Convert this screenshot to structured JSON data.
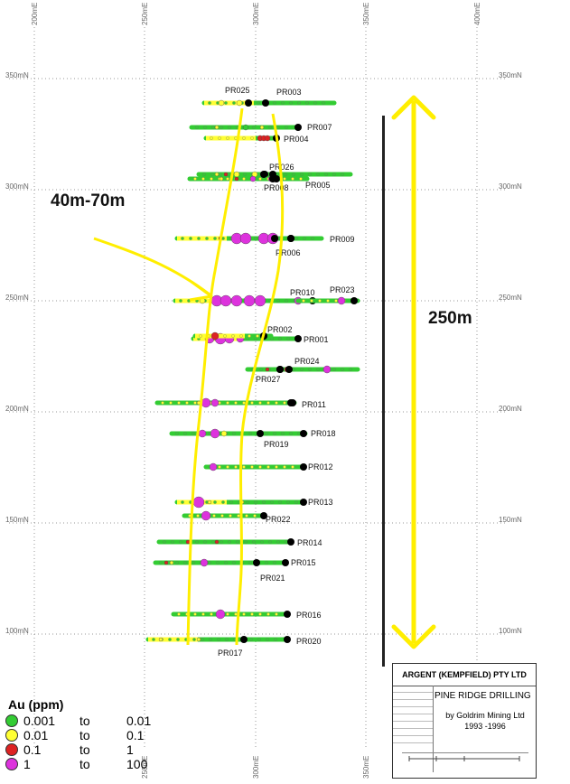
{
  "grid": {
    "easting_labels": [
      "200mE",
      "250mE",
      "300mE",
      "350mE",
      "400mE"
    ],
    "northing_labels": [
      "350mN",
      "300mN",
      "250mN",
      "200mN",
      "150mN",
      "100mN"
    ]
  },
  "annotations": {
    "width_label": "40m-70m",
    "length_label": "250m",
    "highlight_color": "#ffee00"
  },
  "holes": [
    "PR025",
    "PR003",
    "PR007",
    "PR004",
    "PR026",
    "PR008",
    "PR005",
    "PR009",
    "PR006",
    "PR010",
    "PR023",
    "PR002",
    "PR001",
    "PR024",
    "PR027",
    "PR011",
    "PR018",
    "PR019",
    "PR012",
    "PR013",
    "PR022",
    "PR014",
    "PR015",
    "PR021",
    "PR016",
    "PR020",
    "PR017"
  ],
  "legend": {
    "title": "Au (ppm)",
    "items": [
      {
        "low": "0.001",
        "to": "to",
        "high": "0.01",
        "color": "#33cc33"
      },
      {
        "low": "0.01",
        "to": "to",
        "high": "0.1",
        "color": "#ffff33"
      },
      {
        "low": "0.1",
        "to": "to",
        "high": "1",
        "color": "#dd2222"
      },
      {
        "low": "1",
        "to": "to",
        "high": "100",
        "color": "#dd33dd"
      }
    ]
  },
  "title_block": {
    "company": "ARGENT (KEMPFIELD) PTY LTD",
    "project": "PINE RIDGE DRILLING",
    "by": "by Goldrim Mining Ltd",
    "years": "1993 -1996"
  }
}
